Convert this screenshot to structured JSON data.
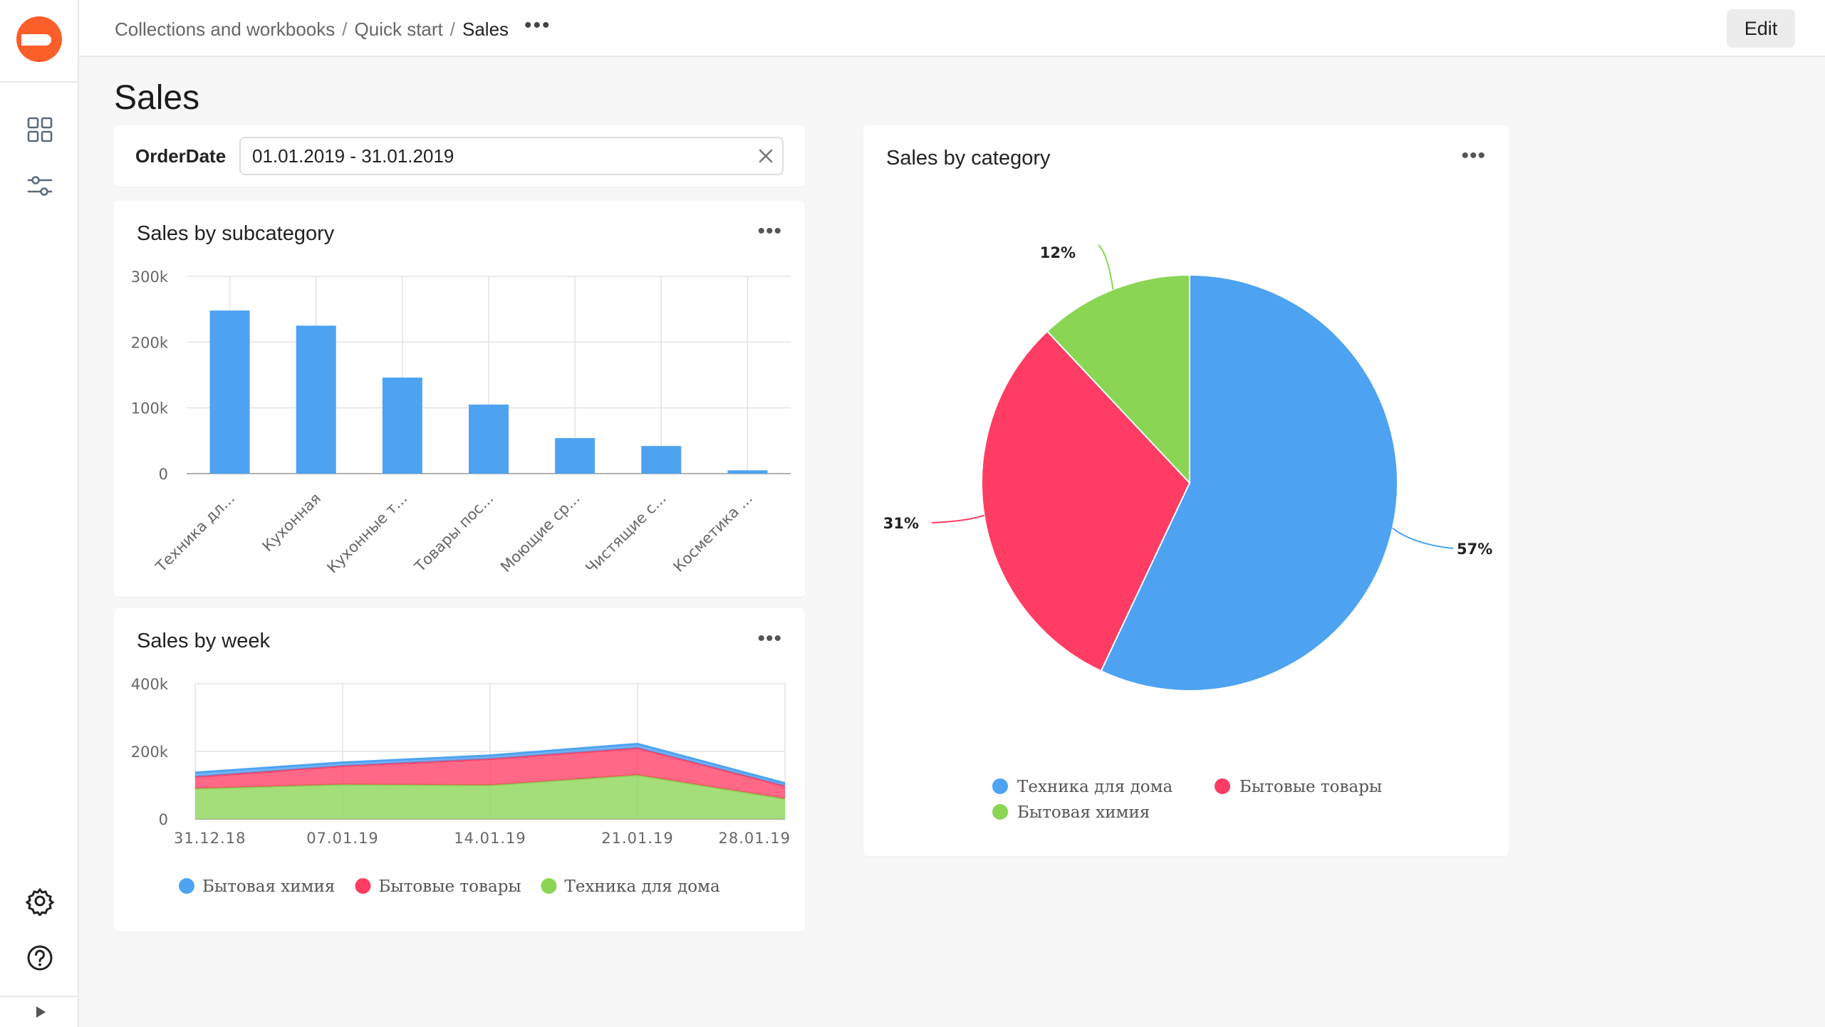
{
  "header": {
    "breadcrumbs": [
      "Collections and workbooks",
      "Quick start",
      "Sales"
    ],
    "more_label": "•••",
    "edit_label": "Edit"
  },
  "page": {
    "title": "Sales"
  },
  "sidebar": {
    "icons": [
      "logo-icon",
      "dashboard-grid-icon",
      "sliders-icon",
      "settings-gear-icon",
      "help-icon",
      "collapse-arrow-icon"
    ]
  },
  "filter": {
    "label": "OrderDate",
    "value": "01.01.2019 - 31.01.2019"
  },
  "panels": {
    "subcategory_title": "Sales by subcategory",
    "week_title": "Sales by week",
    "category_title": "Sales by category",
    "more_label": "•••"
  },
  "colors": {
    "blue": "#4da2f1",
    "red": "#ff3d64",
    "green": "#8ad554",
    "brand_orange": "#fc5e29"
  },
  "chart_data": [
    {
      "id": "subcategory",
      "type": "bar",
      "title": "Sales by subcategory",
      "categories": [
        "Техника дл...",
        "Кухонная",
        "Кухонные т...",
        "Товары пос...",
        "Моющие ср...",
        "Чистящие с...",
        "Косметика ..."
      ],
      "values": [
        248000,
        225000,
        146000,
        105000,
        54000,
        42000,
        5000
      ],
      "yticks": [
        "300k",
        "200k",
        "100k",
        "0"
      ],
      "ylim": [
        0,
        300000
      ],
      "grid": true
    },
    {
      "id": "week",
      "type": "area",
      "title": "Sales by week",
      "x": [
        "31.12.18",
        "07.01.19",
        "14.01.19",
        "21.01.19",
        "28.01.19"
      ],
      "yticks": [
        "400k",
        "200k",
        "0"
      ],
      "ylim": [
        0,
        400000
      ],
      "stacked": true,
      "series": [
        {
          "name": "Бытовая химия",
          "color": "#4da2f1",
          "values": [
            12000,
            10000,
            10000,
            12000,
            8000
          ]
        },
        {
          "name": "Бытовые товары",
          "color": "#ff3d64",
          "values": [
            35000,
            55000,
            78000,
            80000,
            38000
          ]
        },
        {
          "name": "Техника для дома",
          "color": "#8ad554",
          "values": [
            90000,
            102000,
            100000,
            130000,
            60000
          ]
        }
      ],
      "legend_order": [
        "Бытовая химия",
        "Бытовые товары",
        "Техника для дома"
      ],
      "legend": "bottom",
      "grid": true
    },
    {
      "id": "category",
      "type": "pie",
      "title": "Sales by category",
      "slices": [
        {
          "name": "Техника для дома",
          "value": 57,
          "label": "57%",
          "color": "#4da2f1"
        },
        {
          "name": "Бытовые товары",
          "value": 31,
          "label": "31%",
          "color": "#ff3d64"
        },
        {
          "name": "Бытовая химия",
          "value": 12,
          "label": "12%",
          "color": "#8ad554"
        }
      ],
      "legend": "bottom"
    }
  ]
}
